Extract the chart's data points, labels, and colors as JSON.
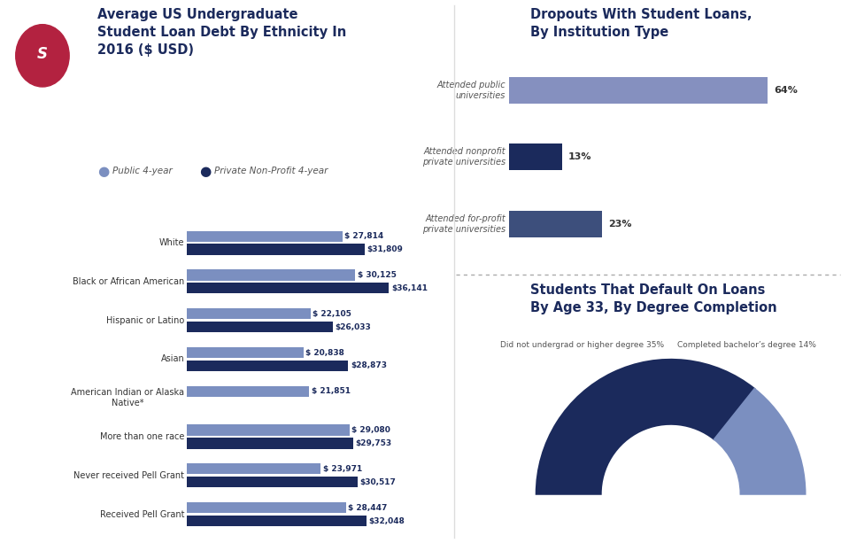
{
  "left_title": "Average US Undergraduate\nStudent Loan Debt By Ethnicity In\n2016 ($ USD)",
  "left_categories": [
    "White",
    "Black or African American",
    "Hispanic or Latino",
    "Asian",
    "American Indian or Alaska\nNative*",
    "More than one race",
    "Never received Pell Grant",
    "Received Pell Grant"
  ],
  "public_values": [
    27814,
    30125,
    22105,
    20838,
    21851,
    29080,
    23971,
    28447
  ],
  "private_values": [
    31809,
    36141,
    26033,
    28873,
    null,
    29753,
    30517,
    32048
  ],
  "public_color": "#7b8fc0",
  "private_color": "#1b2a5c",
  "legend_public": "Public 4-year",
  "legend_private": "Private Non-Profit 4-year",
  "top_right_title": "Dropouts With Student Loans,\nBy Institution Type",
  "institution_labels": [
    "Attended public\nuniversities",
    "Attended nonprofit\nprivate universities",
    "Attended for-profit\nprivate universities"
  ],
  "institution_values": [
    64,
    13,
    23
  ],
  "institution_colors": [
    "#8590bf",
    "#1b2a5c",
    "#3d4f7c"
  ],
  "bottom_right_title": "Students That Default On Loans\nBy Age 33, By Degree Completion",
  "donut_labels": [
    "Did not undergrad or higher degree",
    "Completed bachelor’s degree"
  ],
  "donut_values": [
    35,
    14
  ],
  "donut_colors": [
    "#1b2a5c",
    "#7b8fc0"
  ],
  "donut_label_percents": [
    "35%",
    "14%"
  ],
  "bg_color": "#ffffff",
  "text_dark": "#1b2a5c",
  "text_gray": "#666666",
  "icon_bg_red": "#b32240",
  "title_color": "#1b2a5c"
}
